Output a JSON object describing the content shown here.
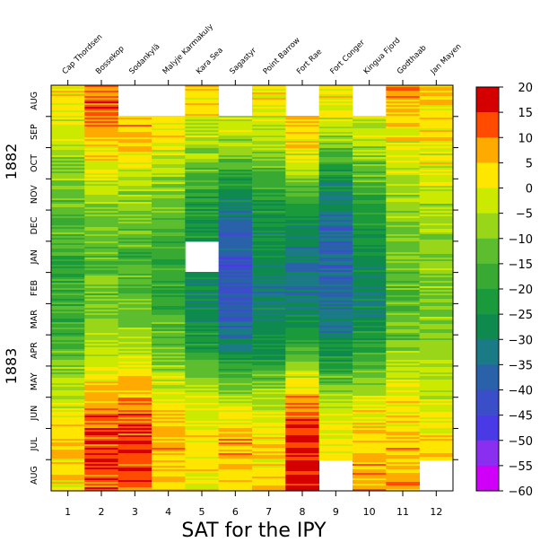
{
  "chart_data": {
    "type": "heatmap",
    "title": "SAT for the IPY",
    "x": [
      1,
      2,
      3,
      4,
      5,
      6,
      7,
      8,
      9,
      10,
      11,
      12
    ],
    "stations": [
      "Cap Thordsen",
      "Bossekop",
      "Sodankylä",
      "Malyje Karmakuly",
      "Kara Sea",
      "Sagastyr",
      "Point Barrow",
      "Fort Rae",
      "Fort Conger",
      "Kingua Fjord",
      "Godthaab",
      "Jan Mayen"
    ],
    "months": [
      "AUG",
      "SEP",
      "OCT",
      "NOV",
      "DEC",
      "JAN",
      "FEB",
      "MAR",
      "APR",
      "MAY",
      "JUN",
      "JUL",
      "AUG"
    ],
    "years": [
      "1882",
      "1883"
    ],
    "colorbar": {
      "ticks": [
        20,
        15,
        10,
        5,
        0,
        -5,
        -10,
        -15,
        -20,
        -25,
        -30,
        -35,
        -40,
        -45,
        -50,
        -55,
        -60
      ],
      "tick_labels": [
        "20",
        "15",
        "10",
        "5",
        "0",
        "−5",
        "−10",
        "−15",
        "−20",
        "−25",
        "−30",
        "−35",
        "−40",
        "−45",
        "−50",
        "−55",
        "−60"
      ],
      "bins": [
        {
          "range": [
            15,
            20
          ],
          "color": "#d40000"
        },
        {
          "range": [
            10,
            15
          ],
          "color": "#ff4b00"
        },
        {
          "range": [
            5,
            10
          ],
          "color": "#ffaa00"
        },
        {
          "range": [
            0,
            5
          ],
          "color": "#ffe600"
        },
        {
          "range": [
            -5,
            0
          ],
          "color": "#ccea00"
        },
        {
          "range": [
            -10,
            -5
          ],
          "color": "#99d61a"
        },
        {
          "range": [
            -15,
            -10
          ],
          "color": "#5cbe2e"
        },
        {
          "range": [
            -20,
            -15
          ],
          "color": "#38aa33"
        },
        {
          "range": [
            -25,
            -20
          ],
          "color": "#1a9a3a"
        },
        {
          "range": [
            -30,
            -25
          ],
          "color": "#0e8a4e"
        },
        {
          "range": [
            -35,
            -30
          ],
          "color": "#1a7a86"
        },
        {
          "range": [
            -40,
            -35
          ],
          "color": "#2a62aa"
        },
        {
          "range": [
            -45,
            -40
          ],
          "color": "#3a4ec8"
        },
        {
          "range": [
            -50,
            -45
          ],
          "color": "#4a3ae6"
        },
        {
          "range": [
            -55,
            -50
          ],
          "color": "#8a2ef0"
        },
        {
          "range": [
            -60,
            -55
          ],
          "color": "#d000f8"
        }
      ]
    },
    "monthly_temperature_estimates": [
      {
        "station": "Cap Thordsen",
        "values": [
          2,
          -2,
          -7,
          -11,
          -15,
          -18,
          -18,
          -17,
          -14,
          -6,
          1,
          5,
          3
        ],
        "missing": []
      },
      {
        "station": "Bossekop",
        "values": [
          12,
          6,
          0,
          -6,
          -10,
          -13,
          -12,
          -9,
          -4,
          3,
          10,
          14,
          12
        ],
        "missing": []
      },
      {
        "station": "Sodankylä",
        "values": [
          null,
          6,
          -1,
          -8,
          -12,
          -17,
          -14,
          -11,
          -4,
          4,
          12,
          15,
          12
        ],
        "missing": [
          "AUG 1882"
        ]
      },
      {
        "station": "Malyje Karmakuly",
        "values": [
          null,
          2,
          -4,
          -10,
          -14,
          -18,
          -19,
          -16,
          -12,
          -4,
          3,
          6,
          5
        ],
        "missing": [
          "AUG 1882"
        ]
      },
      {
        "station": "Kara Sea",
        "values": [
          3,
          -3,
          -12,
          -20,
          -24,
          null,
          -28,
          -26,
          -20,
          -8,
          0,
          2,
          1
        ],
        "missing": [
          "JAN 1883"
        ]
      },
      {
        "station": "Sagastyr",
        "values": [
          null,
          -2,
          -14,
          -28,
          -35,
          -40,
          -42,
          -38,
          -28,
          -12,
          2,
          6,
          4
        ],
        "missing": [
          "AUG 1882"
        ]
      },
      {
        "station": "Point Barrow",
        "values": [
          3,
          -2,
          -12,
          -20,
          -25,
          -28,
          -32,
          -30,
          -25,
          -12,
          -1,
          4,
          4
        ],
        "missing": []
      },
      {
        "station": "Fort Rae",
        "values": [
          null,
          6,
          -2,
          -16,
          -28,
          -32,
          -35,
          -28,
          -14,
          0,
          12,
          16,
          15
        ],
        "missing": [
          "AUG 1882"
        ]
      },
      {
        "station": "Fort Conger",
        "values": [
          2,
          -5,
          -18,
          -30,
          -36,
          -38,
          -37,
          -33,
          -27,
          -12,
          -1,
          2,
          null
        ],
        "missing": [
          "AUG 1883"
        ]
      },
      {
        "station": "Kingua Fjord",
        "values": [
          null,
          -2,
          -10,
          -18,
          -24,
          -26,
          -30,
          -28,
          -20,
          -8,
          2,
          6,
          8
        ],
        "missing": [
          "AUG 1882"
        ]
      },
      {
        "station": "Godthaab",
        "values": [
          6,
          2,
          -3,
          -7,
          -10,
          -12,
          -14,
          -13,
          -8,
          -2,
          3,
          6,
          6
        ],
        "missing": []
      },
      {
        "station": "Jan Mayen",
        "values": [
          4,
          2,
          -1,
          -4,
          -7,
          -9,
          -10,
          -9,
          -6,
          -3,
          1,
          3,
          null
        ],
        "missing": [
          "AUG 1883"
        ]
      }
    ]
  }
}
